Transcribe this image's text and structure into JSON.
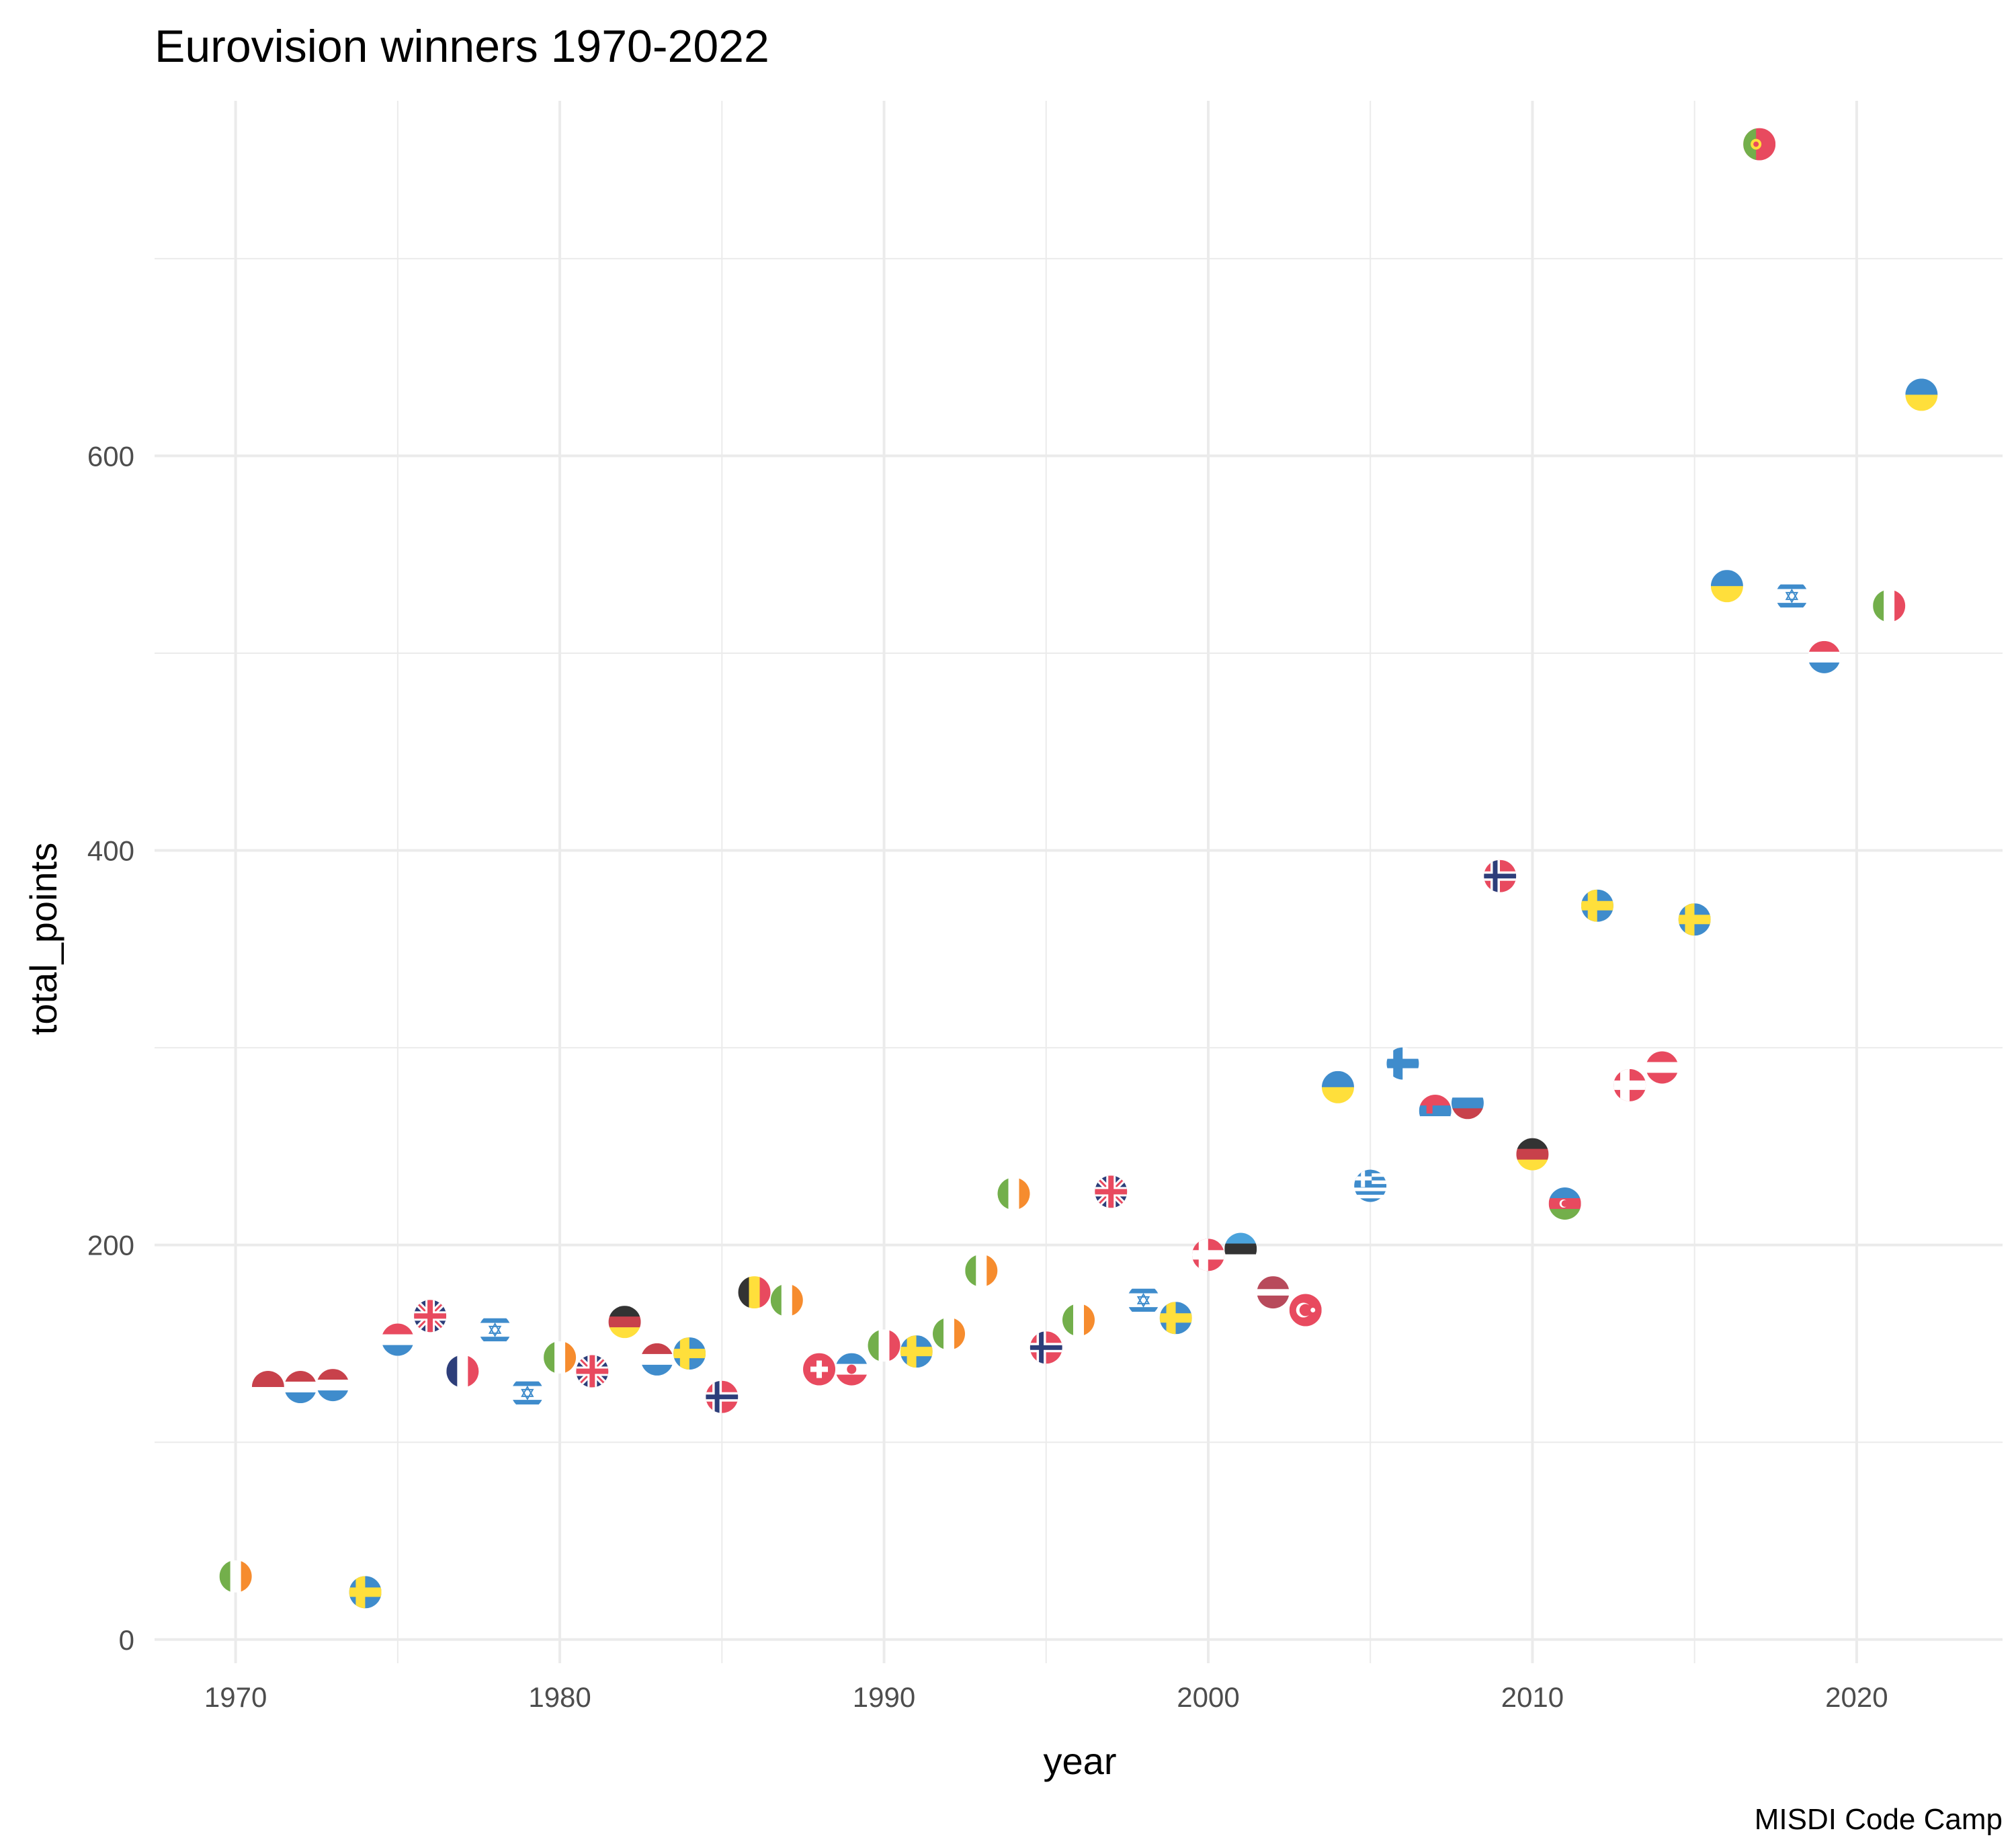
{
  "chart_data": {
    "type": "scatter",
    "title": "Eurovision winners 1970-2022",
    "xlabel": "year",
    "ylabel": "total_points",
    "caption": "MISDI Code Camp",
    "xlim": [
      1967.5,
      2024.5
    ],
    "ylim": [
      -12,
      780
    ],
    "x_major_ticks": [
      1970,
      1980,
      1990,
      2000,
      2010,
      2020
    ],
    "x_minor_ticks": [
      1975,
      1985,
      1995,
      2005,
      2015
    ],
    "y_major_ticks": [
      0,
      200,
      400,
      600
    ],
    "y_minor_ticks": [
      100,
      300,
      500,
      700
    ],
    "x_tick_labels": [
      "1970",
      "1980",
      "1990",
      "2000",
      "2010",
      "2020"
    ],
    "y_tick_labels": [
      "0",
      "200",
      "400",
      "600"
    ],
    "grid": true,
    "legend": "none",
    "marker": "circular country flag",
    "points": [
      {
        "x": 1970,
        "y": 32,
        "flag": "ireland"
      },
      {
        "x": 1971,
        "y": 128,
        "flag": "monaco"
      },
      {
        "x": 1972,
        "y": 128,
        "flag": "luxembourg"
      },
      {
        "x": 1973,
        "y": 129,
        "flag": "luxembourg"
      },
      {
        "x": 1974,
        "y": 24,
        "flag": "sweden"
      },
      {
        "x": 1975,
        "y": 152,
        "flag": "netherlands"
      },
      {
        "x": 1976,
        "y": 164,
        "flag": "united-kingdom"
      },
      {
        "x": 1977,
        "y": 136,
        "flag": "france"
      },
      {
        "x": 1978,
        "y": 157,
        "flag": "israel"
      },
      {
        "x": 1979,
        "y": 125,
        "flag": "israel"
      },
      {
        "x": 1980,
        "y": 143,
        "flag": "ireland"
      },
      {
        "x": 1981,
        "y": 136,
        "flag": "united-kingdom"
      },
      {
        "x": 1982,
        "y": 161,
        "flag": "germany"
      },
      {
        "x": 1983,
        "y": 142,
        "flag": "luxembourg"
      },
      {
        "x": 1984,
        "y": 145,
        "flag": "sweden"
      },
      {
        "x": 1985,
        "y": 123,
        "flag": "norway"
      },
      {
        "x": 1986,
        "y": 176,
        "flag": "belgium"
      },
      {
        "x": 1987,
        "y": 172,
        "flag": "ireland"
      },
      {
        "x": 1988,
        "y": 137,
        "flag": "switzerland"
      },
      {
        "x": 1989,
        "y": 137,
        "flag": "yugoslavia"
      },
      {
        "x": 1990,
        "y": 149,
        "flag": "italy"
      },
      {
        "x": 1991,
        "y": 146,
        "flag": "sweden"
      },
      {
        "x": 1992,
        "y": 155,
        "flag": "ireland"
      },
      {
        "x": 1993,
        "y": 187,
        "flag": "ireland"
      },
      {
        "x": 1994,
        "y": 226,
        "flag": "ireland"
      },
      {
        "x": 1995,
        "y": 148,
        "flag": "norway"
      },
      {
        "x": 1996,
        "y": 162,
        "flag": "ireland"
      },
      {
        "x": 1997,
        "y": 227,
        "flag": "united-kingdom"
      },
      {
        "x": 1998,
        "y": 172,
        "flag": "israel"
      },
      {
        "x": 1999,
        "y": 163,
        "flag": "sweden"
      },
      {
        "x": 2000,
        "y": 195,
        "flag": "denmark"
      },
      {
        "x": 2001,
        "y": 198,
        "flag": "estonia"
      },
      {
        "x": 2002,
        "y": 176,
        "flag": "latvia"
      },
      {
        "x": 2003,
        "y": 167,
        "flag": "turkey"
      },
      {
        "x": 2004,
        "y": 280,
        "flag": "ukraine"
      },
      {
        "x": 2005,
        "y": 230,
        "flag": "greece"
      },
      {
        "x": 2006,
        "y": 292,
        "flag": "finland"
      },
      {
        "x": 2007,
        "y": 268,
        "flag": "serbia"
      },
      {
        "x": 2008,
        "y": 272,
        "flag": "russia"
      },
      {
        "x": 2009,
        "y": 387,
        "flag": "norway"
      },
      {
        "x": 2010,
        "y": 246,
        "flag": "germany"
      },
      {
        "x": 2011,
        "y": 221,
        "flag": "azerbaijan"
      },
      {
        "x": 2012,
        "y": 372,
        "flag": "sweden"
      },
      {
        "x": 2013,
        "y": 281,
        "flag": "denmark"
      },
      {
        "x": 2014,
        "y": 290,
        "flag": "austria"
      },
      {
        "x": 2015,
        "y": 365,
        "flag": "sweden"
      },
      {
        "x": 2016,
        "y": 534,
        "flag": "ukraine"
      },
      {
        "x": 2017,
        "y": 758,
        "flag": "portugal"
      },
      {
        "x": 2018,
        "y": 529,
        "flag": "israel"
      },
      {
        "x": 2019,
        "y": 498,
        "flag": "netherlands"
      },
      {
        "x": 2021,
        "y": 524,
        "flag": "italy"
      },
      {
        "x": 2022,
        "y": 631,
        "flag": "ukraine"
      }
    ]
  }
}
